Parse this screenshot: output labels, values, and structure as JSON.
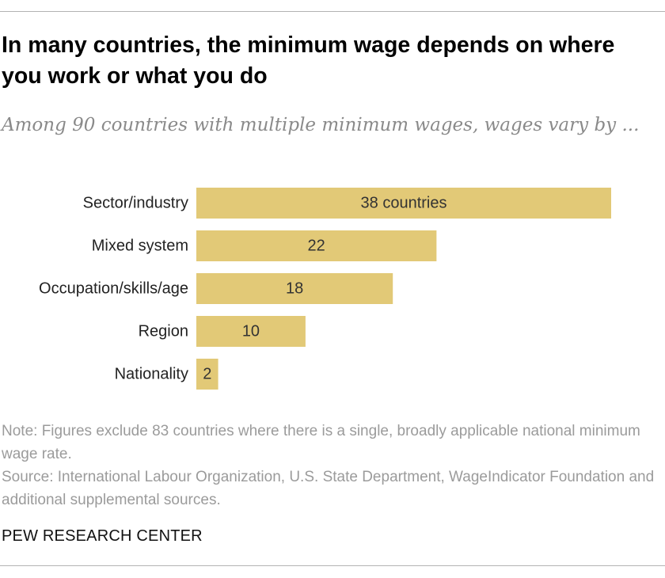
{
  "header": {
    "title": "In many countries, the minimum wage depends on where you work or what you do",
    "subtitle": "Among 90 countries with multiple minimum wages, wages vary by ..."
  },
  "chart_data": {
    "type": "bar",
    "orientation": "horizontal",
    "categories": [
      "Sector/industry",
      "Mixed system",
      "Occupation/skills/age",
      "Region",
      "Nationality"
    ],
    "values": [
      38,
      22,
      18,
      10,
      2
    ],
    "value_labels": [
      "38 countries",
      "22",
      "18",
      "10",
      "2"
    ],
    "xlim": [
      0,
      38
    ],
    "grid": false,
    "bar_color": "#e2c977"
  },
  "footer": {
    "note": "Note: Figures exclude 83 countries where there is a single, broadly applicable national minimum wage rate.",
    "source": "Source: International Labour Organization, U.S. State Department, WageIndicator Foundation and additional supplemental sources.",
    "brand": "PEW RESEARCH CENTER"
  }
}
